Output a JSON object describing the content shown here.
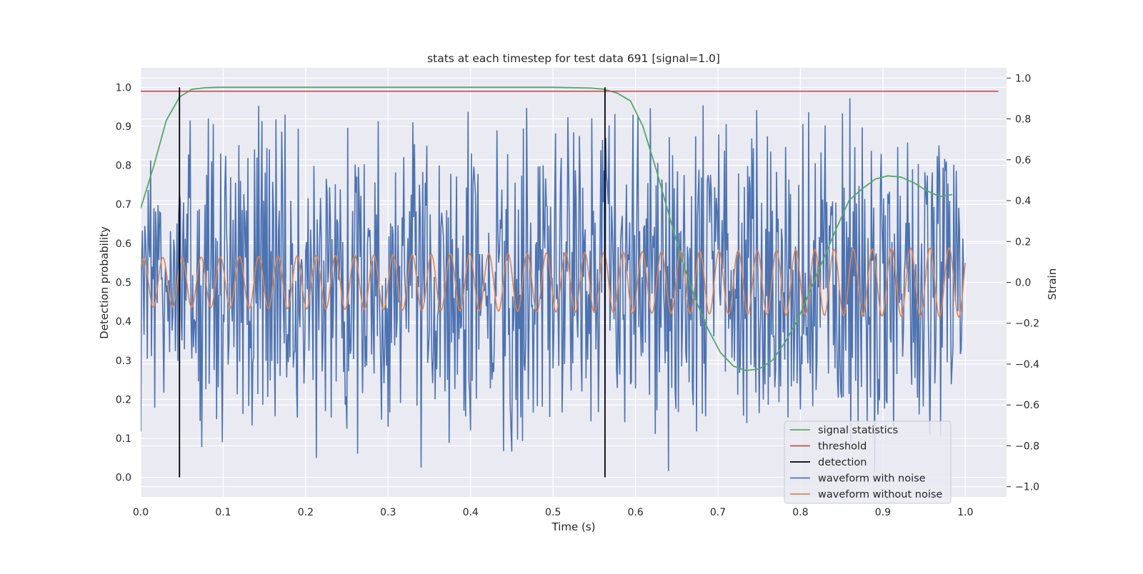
{
  "chart_data": {
    "type": "line",
    "title": "stats at each timestep for test data 691 [signal=1.0]",
    "xlabel": "Time (s)",
    "ylabel_left": "Detection probability",
    "ylabel_right": "Strain",
    "xlim": [
      0.0,
      1.05
    ],
    "ylim_left": [
      -0.05,
      1.05
    ],
    "ylim_right": [
      -1.05,
      1.05
    ],
    "x_ticks": [
      "0.0",
      "0.1",
      "0.2",
      "0.3",
      "0.4",
      "0.5",
      "0.6",
      "0.7",
      "0.8",
      "0.9",
      "1.0"
    ],
    "y_ticks_left": [
      "0.0",
      "0.1",
      "0.2",
      "0.3",
      "0.4",
      "0.5",
      "0.6",
      "0.7",
      "0.8",
      "0.9",
      "1.0"
    ],
    "y_ticks_right": [
      "−1.0",
      "−0.8",
      "−0.6",
      "−0.4",
      "−0.2",
      "0.0",
      "0.2",
      "0.4",
      "0.6",
      "0.8",
      "1.0"
    ],
    "grid": true,
    "legend_position": "bottom-right",
    "colors": {
      "background": "#eaeaf2",
      "grid": "#ffffff",
      "signal_statistics": "#55a868",
      "threshold": "#c44e52",
      "detection": "#000000",
      "waveform_with_noise": "#4c72b0",
      "waveform_without_noise": "#dd8452"
    },
    "series": [
      {
        "name": "signal statistics",
        "axis": "left",
        "x": [
          0.0,
          0.016,
          0.031,
          0.047,
          0.062,
          0.078,
          0.094,
          0.5,
          0.547,
          0.562,
          0.578,
          0.594,
          0.609,
          0.625,
          0.641,
          0.656,
          0.672,
          0.688,
          0.703,
          0.719,
          0.734,
          0.75,
          0.766,
          0.781,
          0.797,
          0.812,
          0.828,
          0.844,
          0.859,
          0.875,
          0.891,
          0.906,
          0.922,
          0.938,
          0.953,
          0.969,
          0.984
        ],
        "y": [
          0.69,
          0.8,
          0.915,
          0.975,
          0.995,
          0.999,
          1.0,
          1.0,
          0.998,
          0.995,
          0.985,
          0.965,
          0.9,
          0.79,
          0.67,
          0.56,
          0.46,
          0.38,
          0.32,
          0.285,
          0.274,
          0.278,
          0.3,
          0.345,
          0.405,
          0.48,
          0.56,
          0.64,
          0.71,
          0.74,
          0.765,
          0.773,
          0.77,
          0.755,
          0.735,
          0.72,
          0.725
        ]
      },
      {
        "name": "threshold",
        "axis": "left",
        "x": [
          0.0,
          1.04
        ],
        "y": [
          0.99,
          0.99
        ]
      },
      {
        "name": "detection",
        "axis": "left",
        "type": "vlines",
        "x": [
          0.047,
          0.563
        ],
        "ymin": 0.0,
        "ymax": 1.0
      },
      {
        "name": "waveform with noise",
        "axis": "right",
        "sample_count": 1000,
        "x_range": [
          0.0,
          0.999
        ],
        "amplitude_range": [
          -1.0,
          1.0
        ],
        "y_samples": [
          -0.6,
          0.65,
          -0.25,
          0.7,
          0.1,
          -0.35,
          0.45,
          -0.55,
          0.5,
          0.0,
          0.82,
          -0.5,
          0.25,
          -0.7,
          0.6,
          -0.1,
          0.35,
          -0.45,
          0.9,
          0.15,
          -0.65,
          0.55,
          -0.3,
          0.75,
          -0.8,
          1.0,
          -0.2,
          0.4,
          -0.4,
          0.15,
          0.6,
          -0.55,
          0.78,
          -0.2,
          0.45,
          -0.6,
          0.3,
          -0.35,
          0.55,
          0.1,
          -0.9,
          0.5,
          -0.15,
          0.7,
          -0.5,
          0.3,
          -0.3,
          0.85,
          0.05,
          -0.6
        ]
      },
      {
        "name": "waveform without noise",
        "axis": "right",
        "function": "sine",
        "cycles": 43,
        "x_range": [
          0.0,
          1.0
        ],
        "amplitude": 0.12,
        "amplitude_end": 0.17
      }
    ],
    "legend": [
      "signal statistics",
      "threshold",
      "detection",
      "waveform with noise",
      "waveform without noise"
    ]
  }
}
